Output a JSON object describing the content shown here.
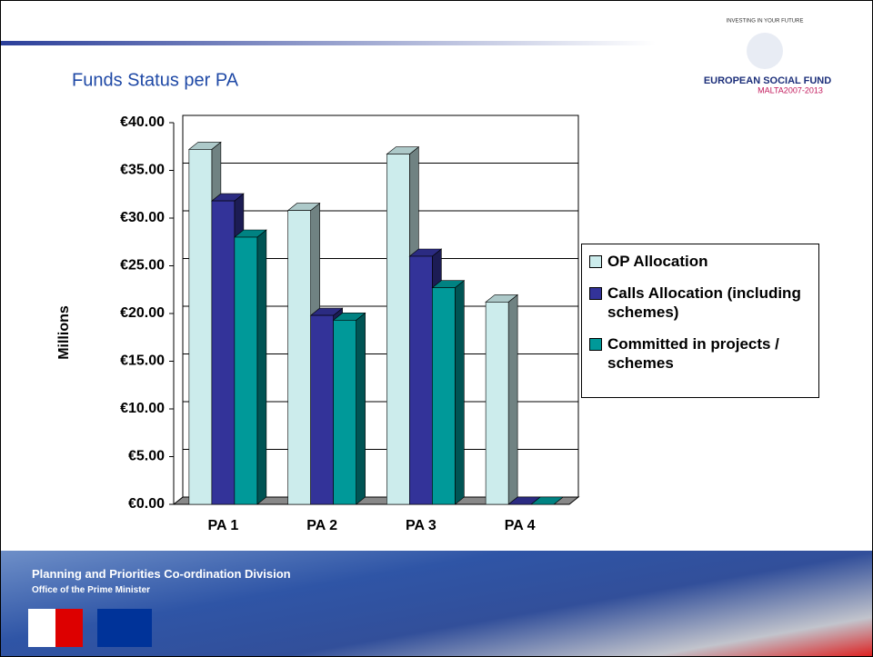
{
  "header": {
    "logo_arc": "INVESTING IN YOUR FUTURE",
    "logo_title": "EUROPEAN SOCIAL FUND",
    "logo_subtitle": "MALTA2007-2013"
  },
  "chart_data": {
    "type": "bar",
    "title": "Funds Status per PA",
    "y_label": "Millions",
    "categories": [
      "PA 1",
      "PA 2",
      "PA 3",
      "PA 4"
    ],
    "series": [
      {
        "name": "OP Allocation",
        "color": "#ccecec",
        "values": [
          37.2,
          30.8,
          36.7,
          21.2
        ]
      },
      {
        "name": "Calls Allocation (including schemes)",
        "color": "#333399",
        "values": [
          31.8,
          19.8,
          26.0,
          0
        ]
      },
      {
        "name": "Committed in projects / schemes",
        "color": "#009999",
        "values": [
          28.0,
          19.3,
          22.7,
          0
        ]
      }
    ],
    "ylim": [
      0,
      40
    ],
    "yticks": [
      {
        "value": 0,
        "label": "€0.00"
      },
      {
        "value": 5,
        "label": "€5.00"
      },
      {
        "value": 10,
        "label": "€10.00"
      },
      {
        "value": 15,
        "label": "€15.00"
      },
      {
        "value": 20,
        "label": "€20.00"
      },
      {
        "value": 25,
        "label": "€25.00"
      },
      {
        "value": 30,
        "label": "€30.00"
      },
      {
        "value": 35,
        "label": "€35.00"
      },
      {
        "value": 40,
        "label": "€40.00"
      }
    ],
    "grid": true,
    "legend": "right"
  },
  "footer": {
    "division": "Planning and Priorities Co-ordination Division",
    "office": "Office of the Prime Minister"
  }
}
